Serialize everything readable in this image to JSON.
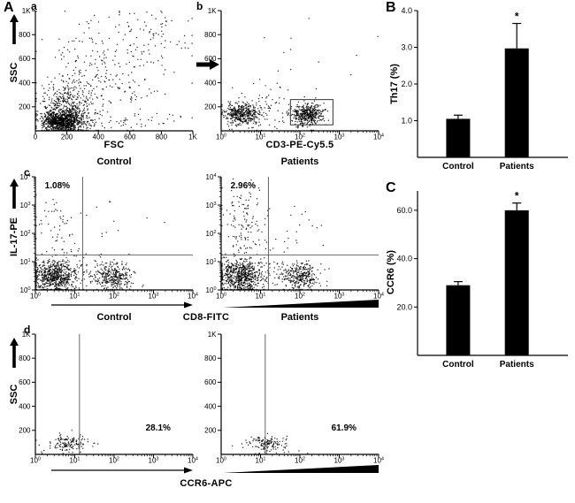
{
  "panel_letters": {
    "A": "A",
    "B": "B",
    "C": "C"
  },
  "sub_letters": {
    "a": "a",
    "b": "b",
    "c": "c",
    "d": "d"
  },
  "axis_labels": {
    "fsc": "FSC",
    "cd3": "CD3-PE-Cy5.5",
    "cd8": "CD8-FITC",
    "ccr6": "CCR6-APC",
    "ssc_a": "SSC",
    "ssc_d": "SSC",
    "il17": "IL-17-PE",
    "th17_pct": "Th17 (%)",
    "ccr6_pct": "CCR6 (%)"
  },
  "column_labels": {
    "row1_control": "Control",
    "row1_patients": "Patients",
    "row2_control": "Control",
    "row2_patients": "Patients"
  },
  "chart_data": [
    {
      "type": "scatter",
      "id": "a",
      "name": "FSC vs SSC all events",
      "xlabel": "FSC",
      "ylabel": "SSC",
      "seed": 7,
      "x_axis": {
        "scale": "linear",
        "tick_labels": [
          "0",
          "200",
          "400",
          "600",
          "800",
          "1K"
        ],
        "tick_pos": [
          0,
          0.2,
          0.4,
          0.6,
          0.8,
          1
        ]
      },
      "y_axis": {
        "scale": "linear",
        "tick_labels": [
          "200",
          "400",
          "600",
          "800",
          "1K"
        ],
        "tick_pos": [
          0.2,
          0.4,
          0.6,
          0.8,
          1
        ]
      },
      "clusters": [
        {
          "n": 900,
          "cx": 0.17,
          "cy": 0.08,
          "sx": 0.06,
          "sy": 0.045
        },
        {
          "n": 400,
          "cx": 0.2,
          "cy": 0.2,
          "sx": 0.08,
          "sy": 0.1
        },
        {
          "n": 260,
          "cx": 0.4,
          "cy": 0.45,
          "sx": 0.2,
          "sy": 0.22
        },
        {
          "n": 90,
          "cx": 0.7,
          "cy": 0.78,
          "sx": 0.16,
          "sy": 0.12
        },
        {
          "n": 60,
          "cx": 0.5,
          "cy": 0.08,
          "sx": 0.25,
          "sy": 0.04
        }
      ],
      "lines": [],
      "gates": [],
      "annotations": []
    },
    {
      "type": "scatter",
      "id": "b",
      "name": "CD3 gating",
      "xlabel": "CD3-PE-Cy5.5",
      "ylabel": "SSC",
      "seed": 11,
      "x_axis": {
        "scale": "log",
        "tick_labels": [
          "10^0",
          "10^1",
          "10^2",
          "10^3",
          "10^4"
        ],
        "tick_pos": [
          0,
          0.25,
          0.5,
          0.75,
          1
        ]
      },
      "y_axis": {
        "scale": "linear",
        "tick_labels": [
          "200",
          "400",
          "600",
          "800",
          "1K"
        ],
        "tick_pos": [
          0.2,
          0.4,
          0.6,
          0.8,
          1
        ]
      },
      "clusters": [
        {
          "n": 420,
          "cx": 0.13,
          "cy": 0.14,
          "sx": 0.055,
          "sy": 0.045
        },
        {
          "n": 420,
          "cx": 0.55,
          "cy": 0.14,
          "sx": 0.05,
          "sy": 0.045
        },
        {
          "n": 70,
          "cx": 0.33,
          "cy": 0.17,
          "sx": 0.15,
          "sy": 0.08
        },
        {
          "n": 25,
          "cx": 0.4,
          "cy": 0.5,
          "sx": 0.25,
          "sy": 0.2
        }
      ],
      "lines": [],
      "gates": [
        {
          "x": 0.44,
          "y": 0.05,
          "w": 0.27,
          "h": 0.21
        }
      ],
      "annotations": []
    },
    {
      "type": "scatter",
      "id": "c-control",
      "name": "IL-17 vs CD8 Control",
      "xlabel": "CD8-FITC",
      "ylabel": "IL-17-PE",
      "seed": 21,
      "x_axis": {
        "scale": "log",
        "tick_labels": [
          "10^0",
          "10^1",
          "10^2",
          "10^3",
          "10^4"
        ],
        "tick_pos": [
          0,
          0.25,
          0.5,
          0.75,
          1
        ]
      },
      "y_axis": {
        "scale": "log",
        "tick_labels": [
          "10^0",
          "10^1",
          "10^2",
          "10^3",
          "10^4"
        ],
        "tick_pos": [
          0,
          0.25,
          0.5,
          0.75,
          1
        ]
      },
      "clusters": [
        {
          "n": 650,
          "cx": 0.12,
          "cy": 0.12,
          "sx": 0.075,
          "sy": 0.075
        },
        {
          "n": 300,
          "cx": 0.5,
          "cy": 0.12,
          "sx": 0.06,
          "sy": 0.06
        },
        {
          "n": 50,
          "cx": 0.13,
          "cy": 0.6,
          "sx": 0.06,
          "sy": 0.14
        },
        {
          "n": 10,
          "cx": 0.45,
          "cy": 0.55,
          "sx": 0.12,
          "sy": 0.12
        },
        {
          "n": 80,
          "cx": 0.28,
          "cy": 0.2,
          "sx": 0.14,
          "sy": 0.1
        }
      ],
      "lines": [
        {
          "x1": 0.3,
          "y1": 0,
          "x2": 0.3,
          "y2": 1
        },
        {
          "x1": 0,
          "y1": 0.31,
          "x2": 1,
          "y2": 0.31
        }
      ],
      "gates": [],
      "annotations": [
        {
          "text": "1.08%",
          "x": 0.06,
          "y": 0.9
        }
      ]
    },
    {
      "type": "scatter",
      "id": "c-patients",
      "name": "IL-17 vs CD8 Patients",
      "xlabel": "CD8-FITC",
      "ylabel": "IL-17-PE",
      "seed": 22,
      "x_axis": {
        "scale": "log",
        "tick_labels": [
          "10^0",
          "10^1",
          "10^2",
          "10^3",
          "10^4"
        ],
        "tick_pos": [
          0,
          0.25,
          0.5,
          0.75,
          1
        ]
      },
      "y_axis": {
        "scale": "log",
        "tick_labels": [
          "10^0",
          "10^1",
          "10^2",
          "10^3",
          "10^4"
        ],
        "tick_pos": [
          0,
          0.25,
          0.5,
          0.75,
          1
        ]
      },
      "clusters": [
        {
          "n": 650,
          "cx": 0.12,
          "cy": 0.12,
          "sx": 0.075,
          "sy": 0.075
        },
        {
          "n": 300,
          "cx": 0.5,
          "cy": 0.12,
          "sx": 0.06,
          "sy": 0.06
        },
        {
          "n": 115,
          "cx": 0.14,
          "cy": 0.62,
          "sx": 0.07,
          "sy": 0.16
        },
        {
          "n": 18,
          "cx": 0.5,
          "cy": 0.6,
          "sx": 0.12,
          "sy": 0.14
        },
        {
          "n": 80,
          "cx": 0.28,
          "cy": 0.2,
          "sx": 0.14,
          "sy": 0.1
        }
      ],
      "lines": [
        {
          "x1": 0.3,
          "y1": 0,
          "x2": 0.3,
          "y2": 1
        },
        {
          "x1": 0,
          "y1": 0.31,
          "x2": 1,
          "y2": 0.31
        }
      ],
      "gates": [],
      "annotations": [
        {
          "text": "2.96%",
          "x": 0.06,
          "y": 0.9
        }
      ]
    },
    {
      "type": "scatter",
      "id": "d-control",
      "name": "CCR6 vs SSC Control",
      "xlabel": "CCR6-APC",
      "ylabel": "SSC",
      "seed": 31,
      "x_axis": {
        "scale": "log",
        "tick_labels": [
          "10^0",
          "10^1",
          "10^2",
          "10^3",
          "10^4"
        ],
        "tick_pos": [
          0,
          0.25,
          0.5,
          0.75,
          1
        ]
      },
      "y_axis": {
        "scale": "linear",
        "tick_labels": [
          "200",
          "400",
          "600",
          "800",
          "1K"
        ],
        "tick_pos": [
          0.2,
          0.4,
          0.6,
          0.8,
          1
        ]
      },
      "clusters": [
        {
          "n": 140,
          "cx": 0.21,
          "cy": 0.09,
          "sx": 0.065,
          "sy": 0.035
        }
      ],
      "lines": [
        {
          "x1": 0.28,
          "y1": 0,
          "x2": 0.28,
          "y2": 1
        }
      ],
      "gates": [],
      "annotations": [
        {
          "text": "28.1%",
          "x": 0.7,
          "y": 0.2
        }
      ]
    },
    {
      "type": "scatter",
      "id": "d-patients",
      "name": "CCR6 vs SSC Patients",
      "xlabel": "CCR6-APC",
      "ylabel": "SSC",
      "seed": 32,
      "x_axis": {
        "scale": "log",
        "tick_labels": [
          "10^0",
          "10^1",
          "10^2",
          "10^3",
          "10^4"
        ],
        "tick_pos": [
          0,
          0.25,
          0.5,
          0.75,
          1
        ]
      },
      "y_axis": {
        "scale": "linear",
        "tick_labels": [
          "200",
          "400",
          "600",
          "800",
          "1K"
        ],
        "tick_pos": [
          0.2,
          0.4,
          0.6,
          0.8,
          1
        ]
      },
      "clusters": [
        {
          "n": 140,
          "cx": 0.29,
          "cy": 0.09,
          "sx": 0.07,
          "sy": 0.035
        }
      ],
      "lines": [
        {
          "x1": 0.28,
          "y1": 0,
          "x2": 0.28,
          "y2": 1
        }
      ],
      "gates": [],
      "annotations": [
        {
          "text": "61.9%",
          "x": 0.7,
          "y": 0.2
        }
      ]
    },
    {
      "type": "bar",
      "id": "B",
      "ylabel": "Th17 (%)",
      "categories": [
        "Control",
        "Patients"
      ],
      "values": [
        1.05,
        2.97
      ],
      "errors": [
        0.1,
        0.68
      ],
      "sig": [
        "",
        "*"
      ],
      "ylim": [
        0,
        4
      ],
      "ytick_labels": [
        "1.0",
        "2.0",
        "3.0",
        "4.0"
      ],
      "ytick_values": [
        1,
        2,
        3,
        4
      ],
      "bar_color": "#000000"
    },
    {
      "type": "bar",
      "id": "C",
      "ylabel": "CCR6 (%)",
      "categories": [
        "Control",
        "Patients"
      ],
      "values": [
        29,
        60
      ],
      "errors": [
        1.5,
        3
      ],
      "sig": [
        "",
        "*"
      ],
      "ylim": [
        0,
        68
      ],
      "ytick_labels": [
        "20.0",
        "40.0",
        "60.0"
      ],
      "ytick_values": [
        20,
        40,
        60
      ],
      "bar_color": "#000000"
    }
  ]
}
